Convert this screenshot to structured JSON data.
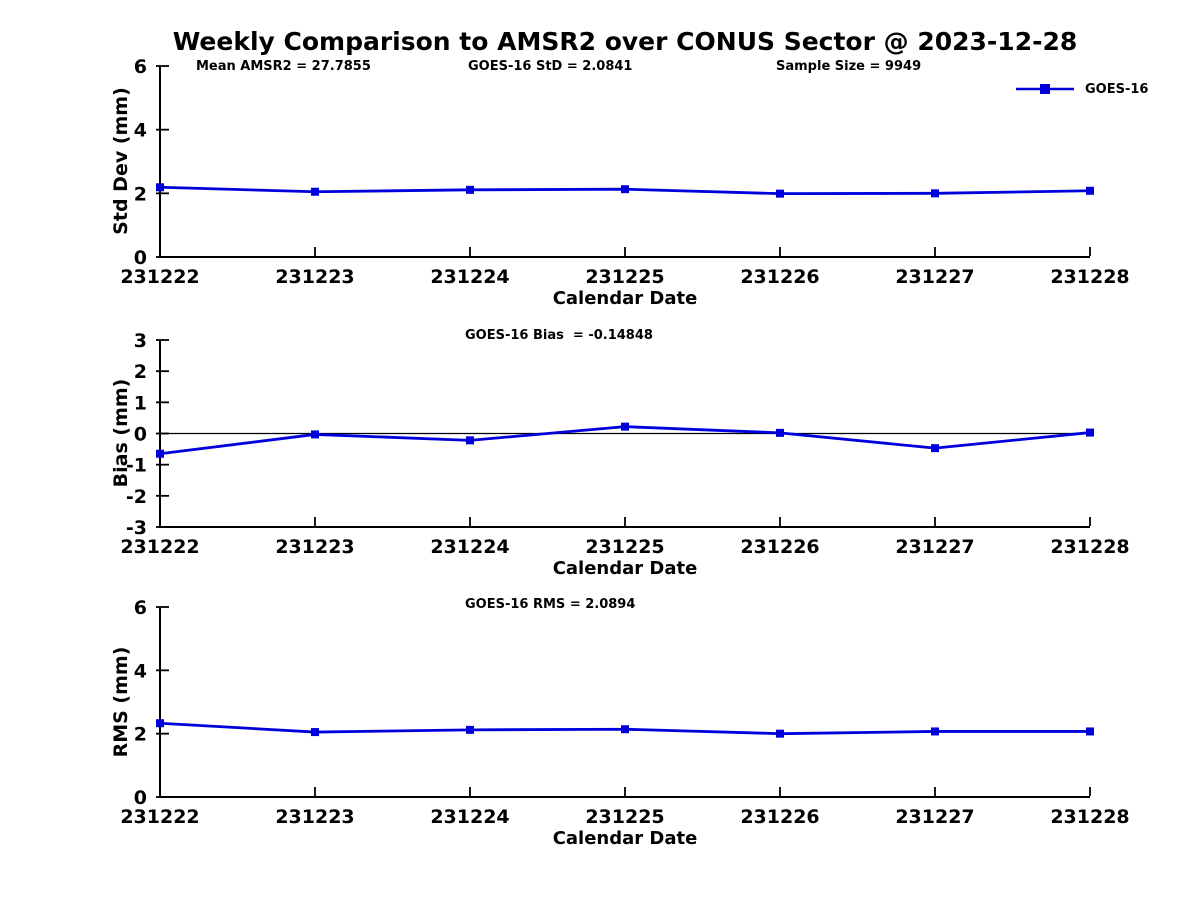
{
  "title": "Weekly Comparison to AMSR2 over CONUS Sector @ 2023-12-28",
  "annotations": {
    "mean_amsr2": "Mean AMSR2 = 27.7855",
    "sample_size": "Sample Size = 9949"
  },
  "legend": {
    "label": "GOES-16",
    "color": "#0000dd"
  },
  "axis_color": "#000000",
  "chart_data": [
    {
      "type": "line",
      "name": "std-dev",
      "annotation": "GOES-16 StD = 2.0841",
      "ylabel": "Std Dev (mm)",
      "xlabel": "Calendar Date",
      "categories": [
        "231222",
        "231223",
        "231224",
        "231225",
        "231226",
        "231227",
        "231228"
      ],
      "series": [
        {
          "name": "GOES-16",
          "values": [
            2.19,
            2.05,
            2.11,
            2.13,
            1.99,
            2.0,
            2.08
          ]
        }
      ],
      "ylim": [
        0,
        6
      ],
      "yticks": [
        0,
        2,
        4,
        6
      ],
      "zero_line": false,
      "grid": false,
      "legend_position": "top-right"
    },
    {
      "type": "line",
      "name": "bias",
      "annotation": "GOES-16 Bias  = -0.14848",
      "ylabel": "Bias (mm)",
      "xlabel": "Calendar Date",
      "categories": [
        "231222",
        "231223",
        "231224",
        "231225",
        "231226",
        "231227",
        "231228"
      ],
      "series": [
        {
          "name": "GOES-16",
          "values": [
            -0.65,
            -0.03,
            -0.22,
            0.22,
            0.02,
            -0.47,
            0.03
          ]
        }
      ],
      "ylim": [
        -3,
        3
      ],
      "yticks": [
        -3,
        -2,
        -1,
        0,
        1,
        2,
        3
      ],
      "zero_line": true,
      "grid": false,
      "legend_position": "none"
    },
    {
      "type": "line",
      "name": "rms",
      "annotation": "GOES-16 RMS = 2.0894",
      "ylabel": "RMS (mm)",
      "xlabel": "Calendar Date",
      "categories": [
        "231222",
        "231223",
        "231224",
        "231225",
        "231226",
        "231227",
        "231228"
      ],
      "series": [
        {
          "name": "GOES-16",
          "values": [
            2.33,
            2.05,
            2.12,
            2.14,
            2.0,
            2.07,
            2.07
          ]
        }
      ],
      "ylim": [
        0,
        6
      ],
      "yticks": [
        0,
        2,
        4,
        6
      ],
      "zero_line": false,
      "grid": false,
      "legend_position": "none"
    }
  ]
}
